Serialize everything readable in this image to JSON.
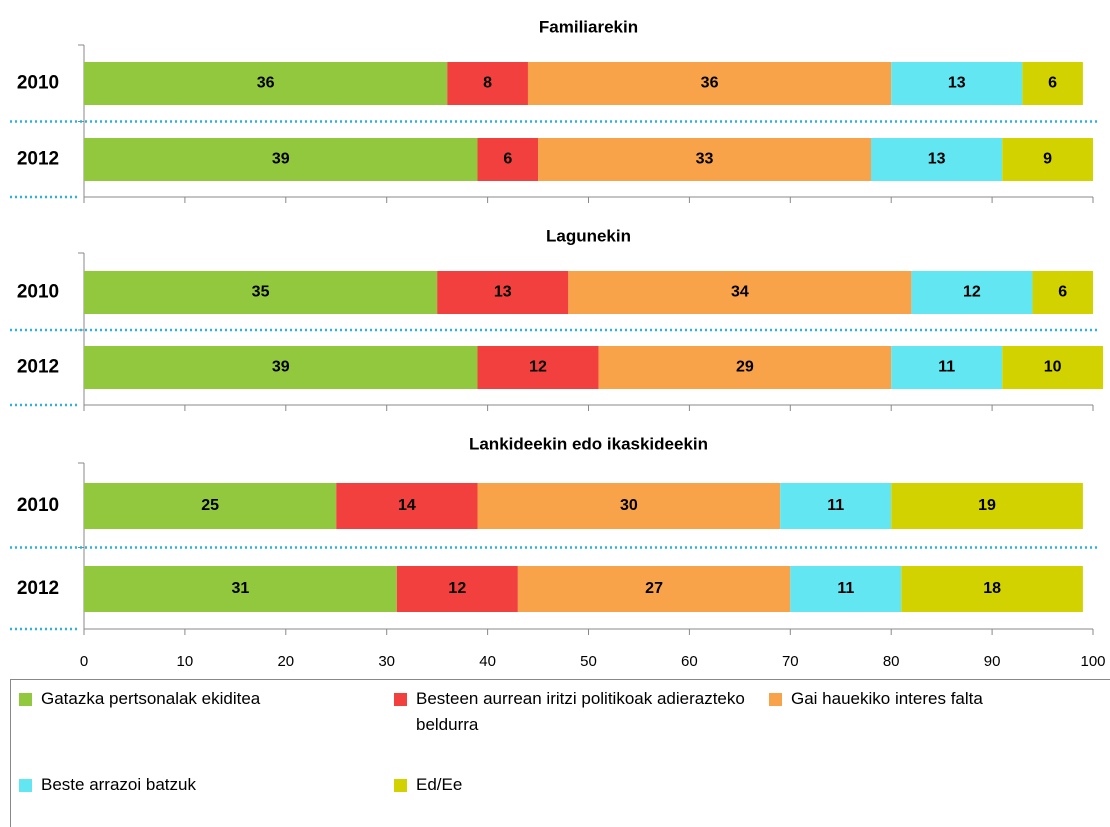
{
  "chart_data": {
    "type": "bar",
    "orientation": "horizontal",
    "stacked": true,
    "xlim": [
      0,
      100
    ],
    "xticks": [
      0,
      10,
      20,
      30,
      40,
      50,
      60,
      70,
      80,
      90,
      100
    ],
    "series": [
      {
        "name": "Gatazka pertsonalak ekiditea",
        "color": "#92c83e"
      },
      {
        "name": "Besteen aurrean iritzi politikoak adierazteko beldurra",
        "color": "#f2403f"
      },
      {
        "name": "Gai hauekiko interes falta",
        "color": "#f8a24a"
      },
      {
        "name": "Beste arrazoi batzuk",
        "color": "#62e6f2"
      },
      {
        "name": "Ed/Ee",
        "color": "#d2d200"
      }
    ],
    "panels": [
      {
        "title": "Familiarekin",
        "categories": [
          "2010",
          "2012"
        ],
        "values": [
          [
            36,
            39
          ],
          [
            8,
            6
          ],
          [
            36,
            33
          ],
          [
            13,
            13
          ],
          [
            6,
            9
          ]
        ]
      },
      {
        "title": "Lagunekin",
        "categories": [
          "2010",
          "2012"
        ],
        "values": [
          [
            35,
            39
          ],
          [
            13,
            12
          ],
          [
            34,
            29
          ],
          [
            12,
            11
          ],
          [
            6,
            10
          ]
        ]
      },
      {
        "title": "Lankideekin edo ikaskideekin",
        "categories": [
          "2010",
          "2012"
        ],
        "values": [
          [
            25,
            31
          ],
          [
            14,
            12
          ],
          [
            30,
            27
          ],
          [
            11,
            11
          ],
          [
            19,
            18
          ]
        ]
      }
    ]
  }
}
